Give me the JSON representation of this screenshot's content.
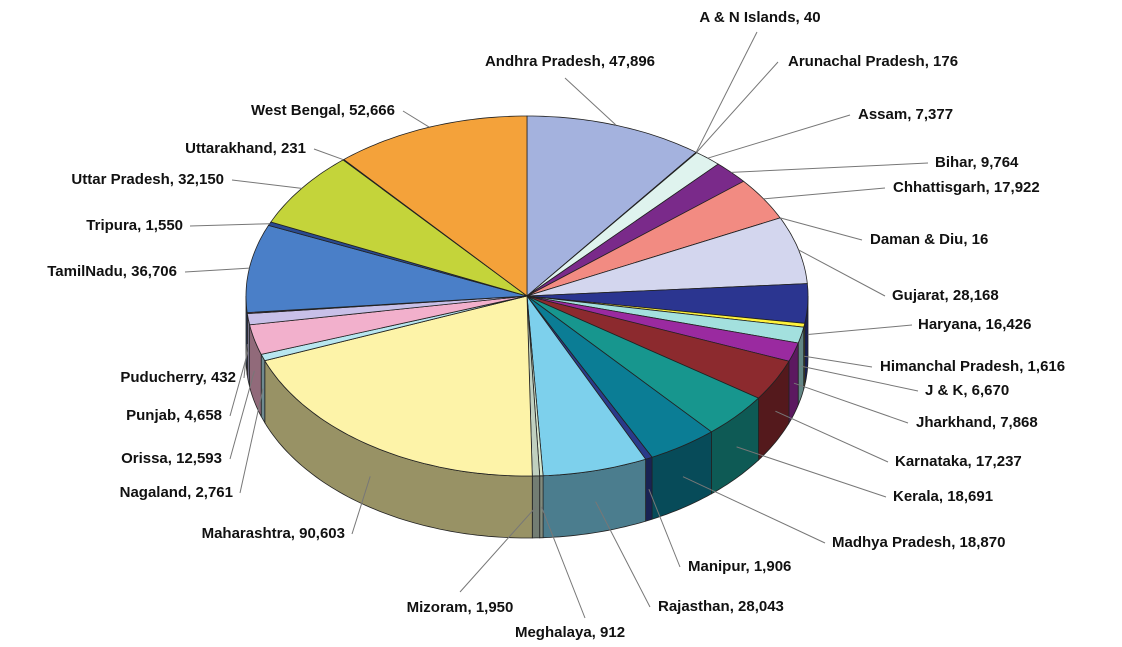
{
  "chart_data": {
    "type": "pie3d",
    "values": [
      47896,
      40,
      176,
      7377,
      9764,
      17922,
      16,
      28168,
      16426,
      1616,
      6670,
      7868,
      17237,
      18691,
      18870,
      1906,
      28043,
      912,
      1950,
      90603,
      2761,
      12593,
      4658,
      432,
      36706,
      1550,
      32150,
      231,
      52666
    ],
    "value_labels": [
      "Andhra Pradesh, 47,896",
      "A & N Islands, 40",
      "Arunachal Pradesh, 176",
      "Assam, 7,377",
      "Bihar, 9,764",
      "Chhattisgarh, 17,922",
      "Daman & Diu, 16",
      "Gujarat, 28,168",
      "Haryana, 16,426",
      "Himanchal Pradesh, 1,616",
      "J & K, 6,670",
      "Jharkhand, 7,868",
      "Karnataka, 17,237",
      "Kerala, 18,691",
      "Madhya Pradesh, 18,870",
      "Manipur, 1,906",
      "Rajasthan, 28,043",
      "Meghalaya, 912",
      "Mizoram, 1,950",
      "Maharashtra, 90,603",
      "Nagaland, 2,761",
      "Orissa, 12,593",
      "Punjab, 4,658",
      "Puducherry, 432",
      "TamilNadu, 36,706",
      "Tripura, 1,550",
      "Uttar Pradesh, 32,150",
      "Uttarakhand, 231",
      "West Bengal, 52,666"
    ],
    "colors": [
      "#a4b2de",
      "#ffffff",
      "#ffffff",
      "#dff3ee",
      "#7a2a8a",
      "#f28b82",
      "#ffffff",
      "#d3d6ee",
      "#2b3590",
      "#fff23a",
      "#a3e0de",
      "#9a2aa0",
      "#8c2a2e",
      "#17968e",
      "#0b7d95",
      "#2a3a8a",
      "#7dd0ec",
      "#d7e8d0",
      "#c0d0c0",
      "#fdf3a8",
      "#b8e6f0",
      "#f2b0cc",
      "#c8c0e8",
      "#a06080",
      "#4a7fc8",
      "#2a4a90",
      "#c4d43a",
      "#5a7a2a",
      "#f4a23a"
    ]
  }
}
